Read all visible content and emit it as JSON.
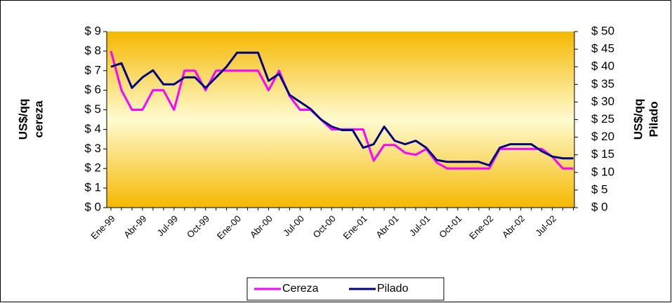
{
  "chart_data": {
    "type": "line",
    "categories": [
      "Ene-99",
      null,
      null,
      "Abr-99",
      null,
      null,
      "Jul-99",
      null,
      null,
      "Oct-99",
      null,
      null,
      "Ene-00",
      null,
      null,
      "Abr-00",
      null,
      null,
      "Jul-00",
      null,
      null,
      "Oct-00",
      null,
      null,
      "Ene-01",
      null,
      null,
      "Abr-01",
      null,
      null,
      "Jul-01",
      null,
      null,
      "Oct-01",
      null,
      null,
      "Ene-02",
      null,
      null,
      "Abr-02",
      null,
      null,
      "Jul-02",
      null,
      null
    ],
    "series": [
      {
        "name": "Cereza",
        "color": "#ff00ff",
        "values": [
          8,
          6,
          5,
          5,
          6,
          6,
          5,
          7,
          7,
          6,
          7,
          7,
          7,
          7,
          7,
          6,
          7,
          5.7,
          5,
          5,
          4.5,
          4,
          4,
          4,
          4,
          2.4,
          3.2,
          3.2,
          2.8,
          2.7,
          3,
          2.3,
          2,
          2,
          2,
          2,
          2,
          3,
          3,
          3,
          3,
          3,
          2.6,
          2,
          2
        ]
      },
      {
        "name": "Pilado",
        "color": "#000080",
        "axis": "y2",
        "values": [
          40,
          41,
          34,
          37,
          39,
          35,
          35,
          37,
          37,
          34,
          37,
          40,
          44,
          44,
          44,
          36,
          38,
          32,
          30,
          28,
          25,
          23,
          22,
          22,
          17,
          18,
          23,
          19,
          18,
          19,
          17,
          13.5,
          13,
          13,
          13,
          13,
          12,
          17,
          18,
          18,
          18,
          16,
          14.5,
          14,
          14
        ]
      }
    ],
    "ylabel": [
      "US$/qq",
      "cereza"
    ],
    "y2label": [
      "US$/qq",
      "Pilado"
    ],
    "ylim": [
      0,
      9
    ],
    "yticks": [
      {
        "value": 0,
        "label": "$ 0"
      },
      {
        "value": 1,
        "label": "$ 1"
      },
      {
        "value": 2,
        "label": "$ 2"
      },
      {
        "value": 3,
        "label": "$ 3"
      },
      {
        "value": 4,
        "label": "$ 4"
      },
      {
        "value": 5,
        "label": "$ 5"
      },
      {
        "value": 6,
        "label": "$ 6"
      },
      {
        "value": 7,
        "label": "$ 7"
      },
      {
        "value": 8,
        "label": "$ 8"
      },
      {
        "value": 9,
        "label": "$ 9"
      }
    ],
    "y2lim": [
      0,
      50
    ],
    "y2ticks": [
      {
        "value": 0,
        "label": "$ 0"
      },
      {
        "value": 5,
        "label": "$ 5"
      },
      {
        "value": 10,
        "label": "$ 10"
      },
      {
        "value": 15,
        "label": "$ 15"
      },
      {
        "value": 20,
        "label": "$ 20"
      },
      {
        "value": 25,
        "label": "$ 25"
      },
      {
        "value": 30,
        "label": "$ 30"
      },
      {
        "value": 35,
        "label": "$ 35"
      },
      {
        "value": 40,
        "label": "$ 40"
      },
      {
        "value": 45,
        "label": "$ 45"
      },
      {
        "value": 50,
        "label": "$ 50"
      }
    ],
    "legend": "bottom"
  }
}
